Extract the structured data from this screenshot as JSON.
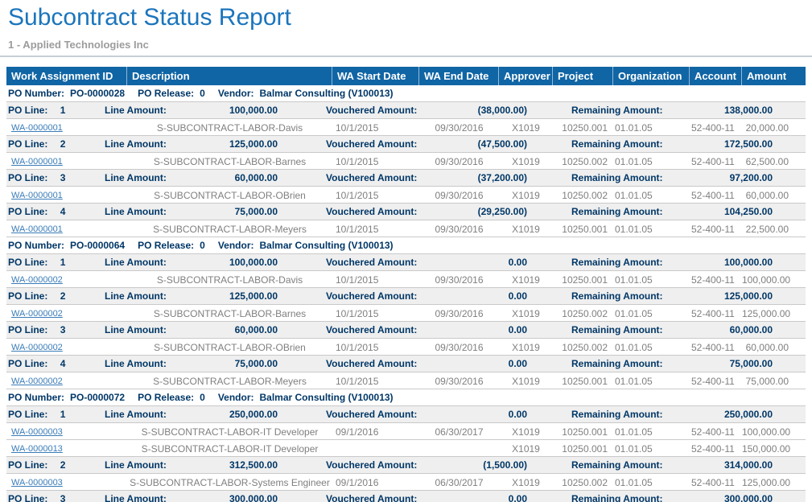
{
  "page": {
    "title": "Subcontract Status Report",
    "subtitle": "1 - Applied Technologies Inc"
  },
  "colors": {
    "title_blue": "#1B75BC",
    "table_header_bg": "#1065A5",
    "group_text_navy": "#003767",
    "detail_text_gray": "#7F7F7F",
    "link_blue": "#3A7CB8",
    "line_row_bg": "#EFEFEF",
    "subtitle_gray": "#9C9C9C"
  },
  "table": {
    "columns": [
      "Work Assignment ID",
      "Description",
      "WA Start Date",
      "WA End Date",
      "Approver",
      "Project",
      "Organization",
      "Account",
      "Amount"
    ],
    "labels": {
      "po_number": "PO Number:",
      "po_release": "PO Release:",
      "vendor": "Vendor:",
      "po_line": "PO Line:",
      "line_amount": "Line Amount:",
      "vouchered_amount": "Vouchered Amount:",
      "remaining_amount": "Remaining Amount:"
    },
    "sections": [
      {
        "po_number": "PO-0000028",
        "po_release": "0",
        "vendor": "Balmar Consulting (V100013)",
        "lines": [
          {
            "line_no": "1",
            "line_amount": "100,000.00",
            "vouchered_amount": "(38,000.00)",
            "remaining_amount": "138,000.00",
            "assignments": [
              {
                "id": "WA-0000001",
                "description": "S-SUBCONTRACT-LABOR-Davis",
                "start": "10/1/2015",
                "end": "09/30/2016",
                "approver": "X1019",
                "project": "10250.001",
                "organization": "01.01.05",
                "account": "52-400-11",
                "amount": "20,000.00"
              }
            ]
          },
          {
            "line_no": "2",
            "line_amount": "125,000.00",
            "vouchered_amount": "(47,500.00)",
            "remaining_amount": "172,500.00",
            "assignments": [
              {
                "id": "WA-0000001",
                "description": "S-SUBCONTRACT-LABOR-Barnes",
                "start": "10/1/2015",
                "end": "09/30/2016",
                "approver": "X1019",
                "project": "10250.002",
                "organization": "01.01.05",
                "account": "52-400-11",
                "amount": "62,500.00"
              }
            ]
          },
          {
            "line_no": "3",
            "line_amount": "60,000.00",
            "vouchered_amount": "(37,200.00)",
            "remaining_amount": "97,200.00",
            "assignments": [
              {
                "id": "WA-0000001",
                "description": "S-SUBCONTRACT-LABOR-OBrien",
                "start": "10/1/2015",
                "end": "09/30/2016",
                "approver": "X1019",
                "project": "10250.002",
                "organization": "01.01.05",
                "account": "52-400-11",
                "amount": "60,000.00"
              }
            ]
          },
          {
            "line_no": "4",
            "line_amount": "75,000.00",
            "vouchered_amount": "(29,250.00)",
            "remaining_amount": "104,250.00",
            "assignments": [
              {
                "id": "WA-0000001",
                "description": "S-SUBCONTRACT-LABOR-Meyers",
                "start": "10/1/2015",
                "end": "09/30/2016",
                "approver": "X1019",
                "project": "10250.001",
                "organization": "01.01.05",
                "account": "52-400-11",
                "amount": "22,500.00"
              }
            ]
          }
        ]
      },
      {
        "po_number": "PO-0000064",
        "po_release": "0",
        "vendor": "Balmar Consulting (V100013)",
        "lines": [
          {
            "line_no": "1",
            "line_amount": "100,000.00",
            "vouchered_amount": "0.00",
            "remaining_amount": "100,000.00",
            "assignments": [
              {
                "id": "WA-0000002",
                "description": "S-SUBCONTRACT-LABOR-Davis",
                "start": "10/1/2015",
                "end": "09/30/2016",
                "approver": "X1019",
                "project": "10250.001",
                "organization": "01.01.05",
                "account": "52-400-11",
                "amount": "100,000.00"
              }
            ]
          },
          {
            "line_no": "2",
            "line_amount": "125,000.00",
            "vouchered_amount": "0.00",
            "remaining_amount": "125,000.00",
            "assignments": [
              {
                "id": "WA-0000002",
                "description": "S-SUBCONTRACT-LABOR-Barnes",
                "start": "10/1/2015",
                "end": "09/30/2016",
                "approver": "X1019",
                "project": "10250.002",
                "organization": "01.01.05",
                "account": "52-400-11",
                "amount": "125,000.00"
              }
            ]
          },
          {
            "line_no": "3",
            "line_amount": "60,000.00",
            "vouchered_amount": "0.00",
            "remaining_amount": "60,000.00",
            "assignments": [
              {
                "id": "WA-0000002",
                "description": "S-SUBCONTRACT-LABOR-OBrien",
                "start": "10/1/2015",
                "end": "09/30/2016",
                "approver": "X1019",
                "project": "10250.002",
                "organization": "01.01.05",
                "account": "52-400-11",
                "amount": "60,000.00"
              }
            ]
          },
          {
            "line_no": "4",
            "line_amount": "75,000.00",
            "vouchered_amount": "0.00",
            "remaining_amount": "75,000.00",
            "assignments": [
              {
                "id": "WA-0000002",
                "description": "S-SUBCONTRACT-LABOR-Meyers",
                "start": "10/1/2015",
                "end": "09/30/2016",
                "approver": "X1019",
                "project": "10250.001",
                "organization": "01.01.05",
                "account": "52-400-11",
                "amount": "75,000.00"
              }
            ]
          }
        ]
      },
      {
        "po_number": "PO-0000072",
        "po_release": "0",
        "vendor": "Balmar Consulting (V100013)",
        "lines": [
          {
            "line_no": "1",
            "line_amount": "250,000.00",
            "vouchered_amount": "0.00",
            "remaining_amount": "250,000.00",
            "assignments": [
              {
                "id": "WA-0000003",
                "description": "S-SUBCONTRACT-LABOR-IT Developer",
                "start": "09/1/2016",
                "end": "06/30/2017",
                "approver": "X1019",
                "project": "10250.001",
                "organization": "01.01.05",
                "account": "52-400-11",
                "amount": "100,000.00"
              },
              {
                "id": "WA-0000013",
                "description": "S-SUBCONTRACT-LABOR-IT Developer",
                "start": "",
                "end": "",
                "approver": "X1019",
                "project": "10250.001",
                "organization": "01.01.05",
                "account": "52-400-11",
                "amount": "150,000.00"
              }
            ]
          },
          {
            "line_no": "2",
            "line_amount": "312,500.00",
            "vouchered_amount": "(1,500.00)",
            "remaining_amount": "314,000.00",
            "assignments": [
              {
                "id": "WA-0000003",
                "description": "S-SUBCONTRACT-LABOR-Systems Engineer",
                "start": "09/1/2016",
                "end": "06/30/2017",
                "approver": "X1019",
                "project": "10250.002",
                "organization": "01.01.05",
                "account": "52-400-11",
                "amount": "125,000.00"
              }
            ]
          },
          {
            "line_no": "3",
            "line_amount": "300,000.00",
            "vouchered_amount": "0.00",
            "remaining_amount": "300,000.00",
            "assignments": []
          }
        ]
      }
    ]
  }
}
